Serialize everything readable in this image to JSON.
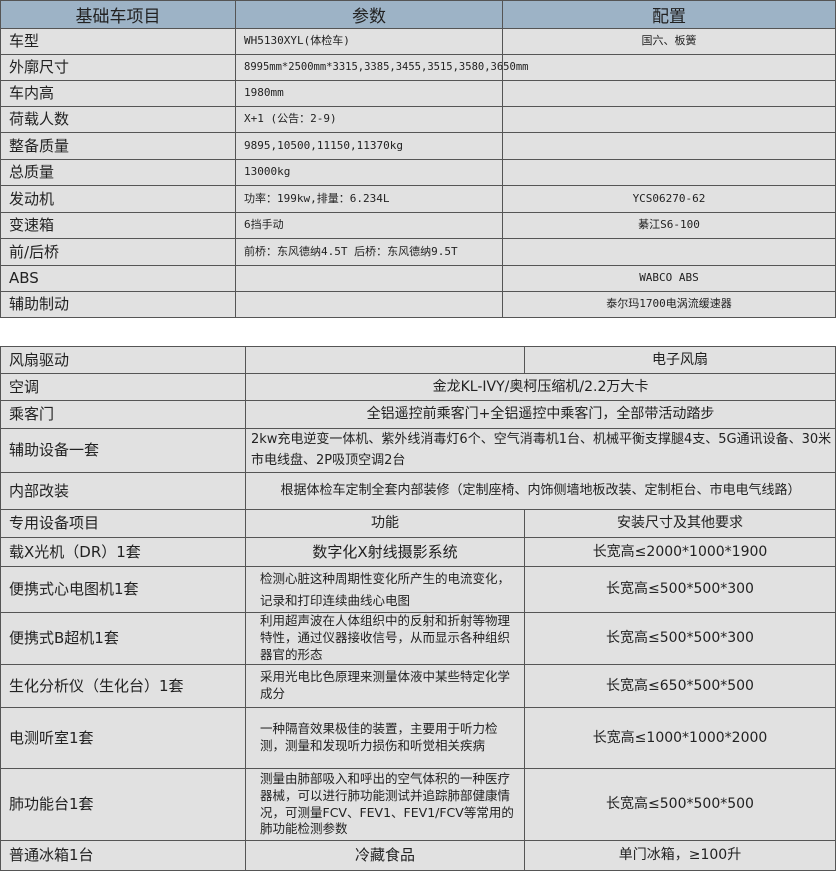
{
  "basic": {
    "headers": [
      "基础车项目",
      "参数",
      "配置"
    ],
    "rows": [
      [
        "车型",
        "WH5130XYL(体检车)",
        "国六、板簧"
      ],
      [
        "外廓尺寸",
        "8995mm*2500mm*3315,3385,3455,3515,3580,3650mm",
        ""
      ],
      [
        "车内高",
        "1980mm",
        ""
      ],
      [
        "荷载人数",
        "X+1 (公告：2-9)",
        ""
      ],
      [
        "整备质量",
        "9895,10500,11150,11370kg",
        ""
      ],
      [
        "总质量",
        "13000kg",
        ""
      ],
      [
        "发动机",
        "功率：199kw,排量：6.234L",
        "YCS06270-62"
      ],
      [
        "变速箱",
        "6挡手动",
        "綦江S6-100"
      ],
      [
        "前/后桥",
        "前桥：东风德纳4.5T 后桥：东风德纳9.5T",
        ""
      ],
      [
        "ABS",
        "",
        "WABCO ABS"
      ],
      [
        "辅助制动",
        "",
        "泰尔玛1700电涡流缓速器"
      ]
    ]
  },
  "equipment": {
    "fan": {
      "label": "风扇驱动",
      "value": "电子风扇"
    },
    "ac": {
      "label": "空调",
      "value": "金龙KL-IVY/奥柯压缩机/2.2万大卡"
    },
    "door": {
      "label": "乘客门",
      "value": "全铝遥控前乘客门+全铝遥控中乘客门，全部带活动踏步"
    },
    "aux": {
      "label": "辅助设备一套",
      "value": "2kw充电逆变一体机、紫外线消毒灯6个、空气消毒机1台、机械平衡支撑腿4支、5G通讯设备、30米市电线盘、2P吸顶空调2台"
    },
    "interior": {
      "label": "内部改装",
      "value": "根据体检车定制全套内部装修（定制座椅、内饰侧墙地板改装、定制柜台、市电电气线路）"
    },
    "headers": [
      "专用设备项目",
      "功能",
      "安装尺寸及其他要求"
    ],
    "rows": [
      [
        "载X光机（DR）1套",
        "数字化X射线摄影系统",
        "长宽高≤2000*1000*1900"
      ],
      [
        "便携式心电图机1套",
        "检测心脏这种周期性变化所产生的电流变化，记录和打印连续曲线心电图",
        "长宽高≤500*500*300"
      ],
      [
        "便携式B超机1套",
        "利用超声波在人体组织中的反射和折射等物理特性，通过仪器接收信号，从而显示各种组织器官的形态",
        "长宽高≤500*500*300"
      ],
      [
        "生化分析仪（生化台）1套",
        "采用光电比色原理来测量体液中某些特定化学成分",
        "长宽高≤650*500*500"
      ],
      [
        "电测听室1套",
        "一种隔音效果极佳的装置，主要用于听力检测，测量和发现听力损伤和听觉相关疾病",
        "长宽高≤1000*1000*2000"
      ],
      [
        "肺功能台1套",
        "测量由肺部吸入和呼出的空气体积的一种医疗器械，可以进行肺功能测试并追踪肺部健康情况，可测量FCV、FEV1、FEV1/FCV等常用的肺功能检测参数",
        "长宽高≤500*500*500"
      ],
      [
        "普通冰箱1台",
        "冷藏食品",
        "单门冰箱，≥100升"
      ]
    ]
  }
}
